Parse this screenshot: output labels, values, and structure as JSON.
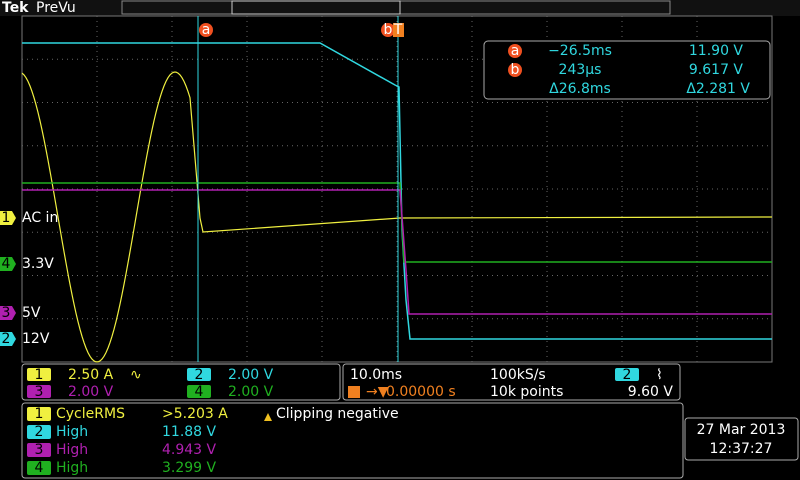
{
  "header": {
    "brand": "Tek",
    "mode": "PreVu"
  },
  "cursors": {
    "a": "a",
    "b": "b",
    "trigger": "T",
    "readout": [
      {
        "marker": "a",
        "time": "−26.5ms",
        "volt": "11.90 V"
      },
      {
        "marker": "b",
        "time": "243µs",
        "volt": "9.617 V"
      },
      {
        "time": "Δ26.8ms",
        "volt": "Δ2.281 V"
      }
    ]
  },
  "channel_tags": [
    {
      "num": "1",
      "label": "AC in"
    },
    {
      "num": "4",
      "label": "3.3V"
    },
    {
      "num": "3",
      "label": "5V"
    },
    {
      "num": "2",
      "label": "12V"
    }
  ],
  "channel_settings": [
    {
      "num": "1",
      "scale": "2.50 A",
      "coupling": "∿"
    },
    {
      "num": "2",
      "scale": "2.00 V"
    },
    {
      "num": "3",
      "scale": "2.00 V"
    },
    {
      "num": "4",
      "scale": "2.00 V"
    }
  ],
  "timebase": {
    "scale": "10.0ms",
    "rate": "100kS/s",
    "delay": "0.00000 s",
    "points": "10k points",
    "trigger_source": "2",
    "trigger_slope": "⌇",
    "trigger_level": "9.60 V"
  },
  "measurements": {
    "rows": [
      {
        "num": "1",
        "name": "CycleRMS",
        "value": ">5.203 A"
      },
      {
        "num": "2",
        "name": "High",
        "value": "11.88 V"
      },
      {
        "num": "3",
        "name": "High",
        "value": "4.943 V"
      },
      {
        "num": "4",
        "name": "High",
        "value": "3.299 V"
      }
    ],
    "warning": "Clipping negative"
  },
  "clock": {
    "date": "27 Mar 2013",
    "time": "12:37:27"
  }
}
